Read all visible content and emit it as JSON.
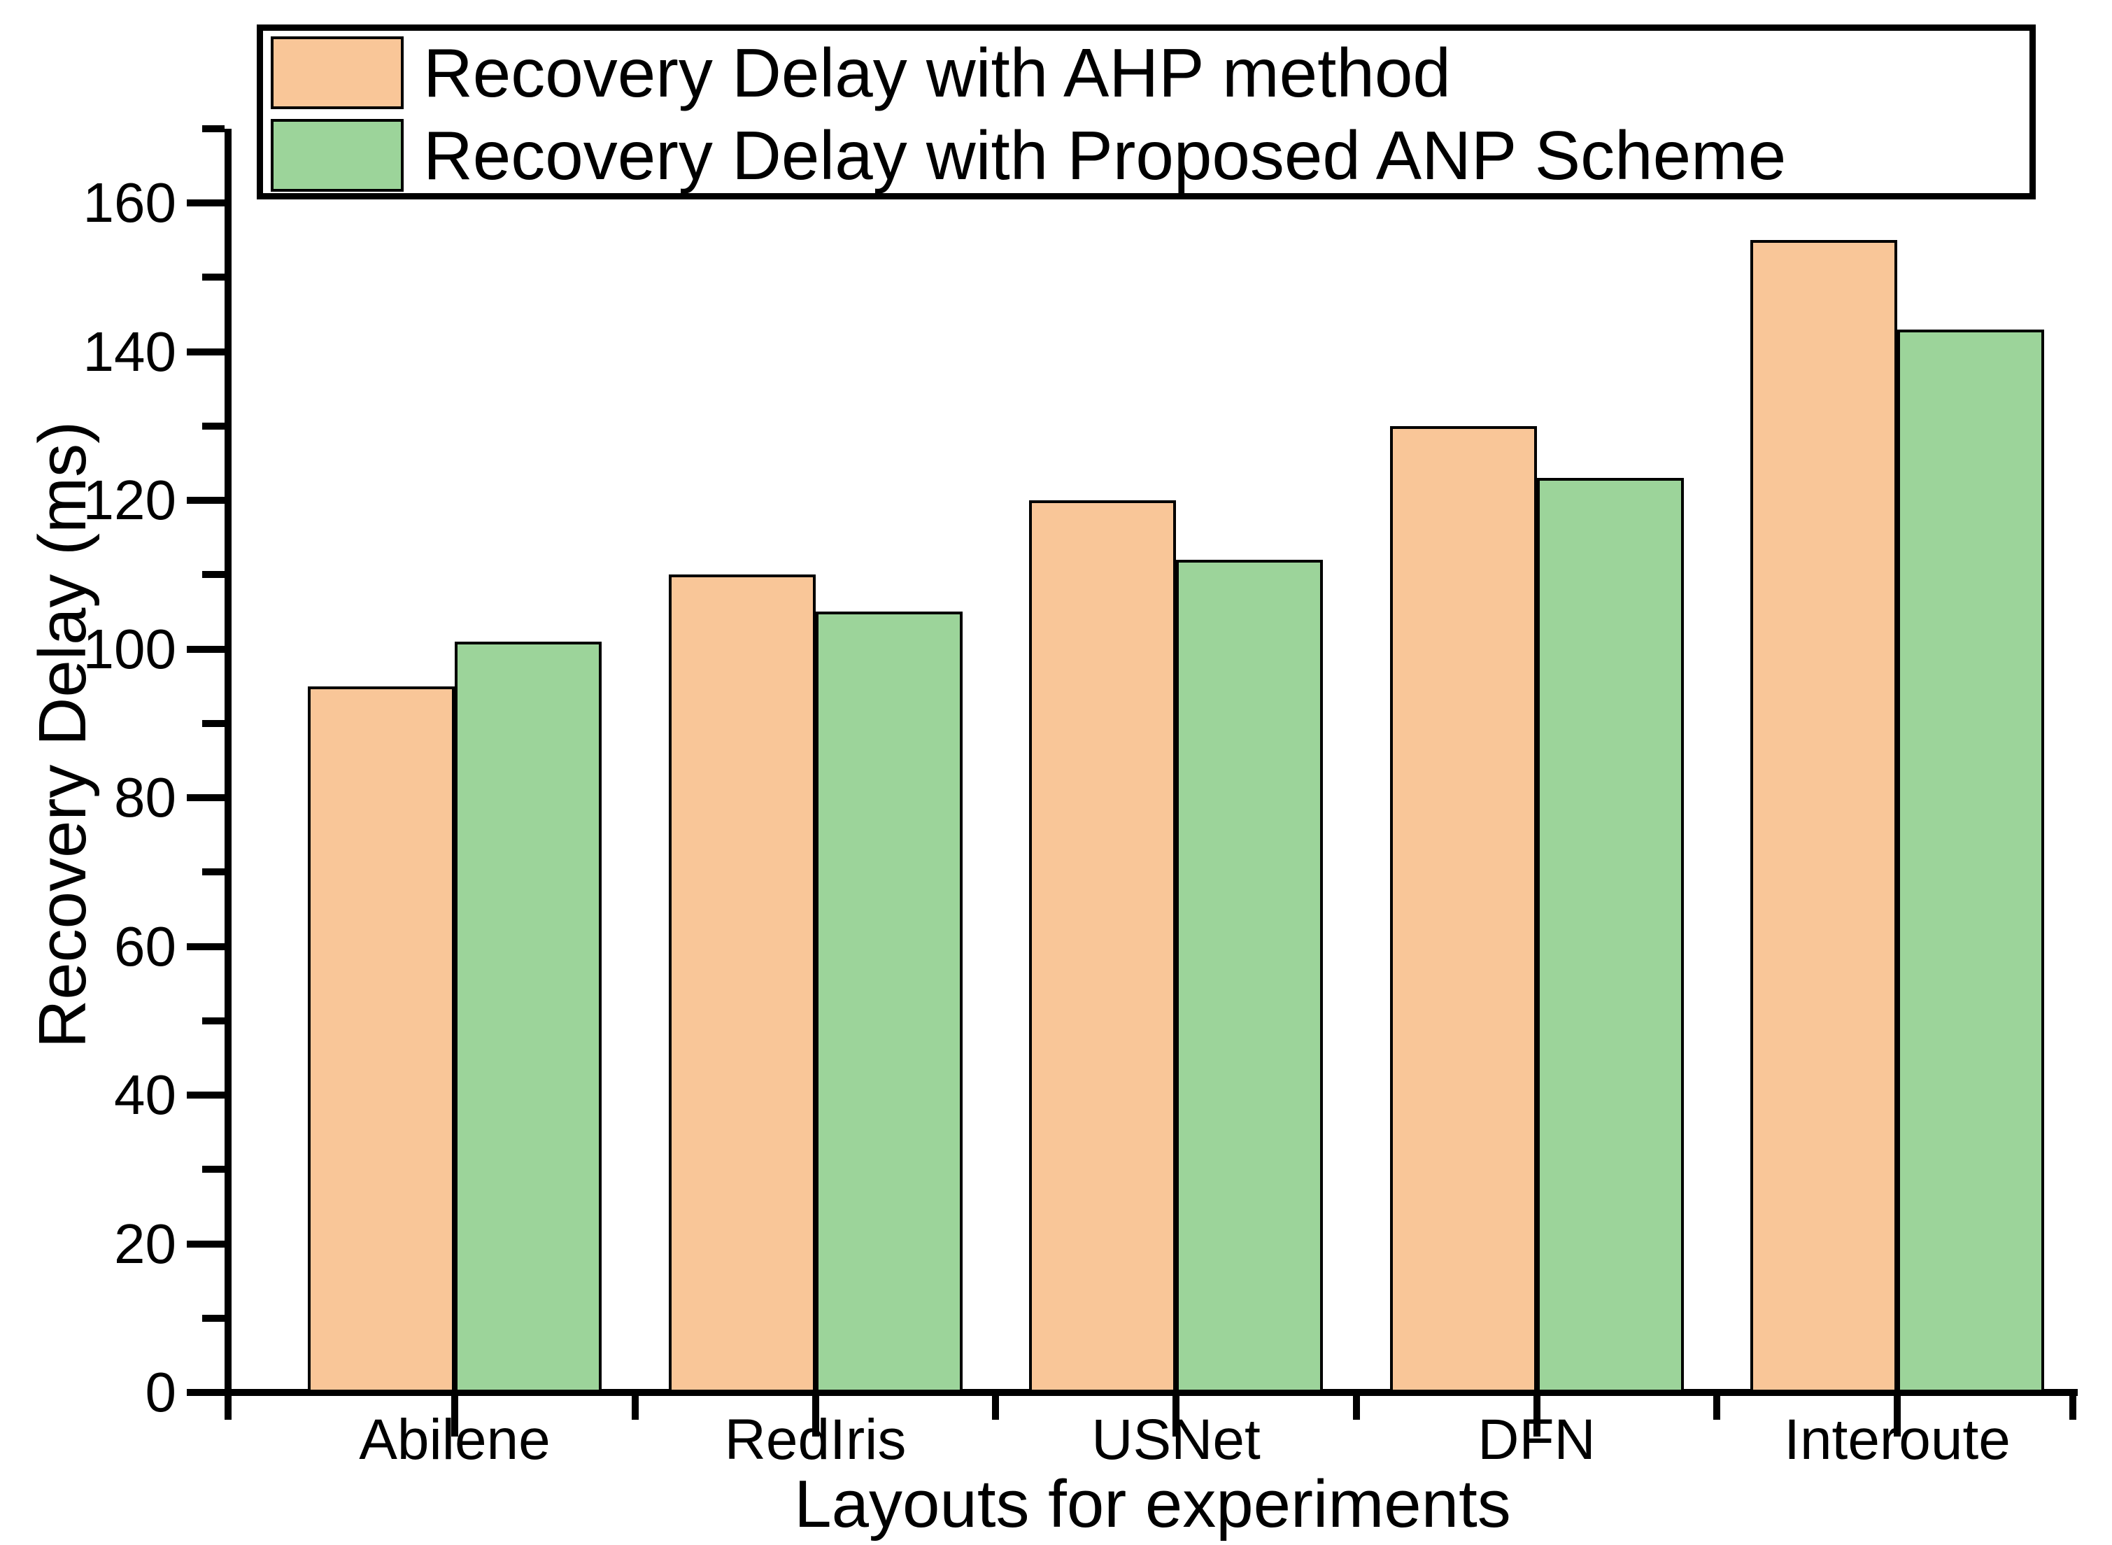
{
  "chart_data": {
    "type": "bar",
    "categories": [
      "Abilene",
      "RedIris",
      "USNet",
      "DFN",
      "Interoute"
    ],
    "series": [
      {
        "name": "Recovery Delay with AHP method",
        "color": "#F9C698",
        "values": [
          95,
          110,
          120,
          130,
          155
        ]
      },
      {
        "name": "Recovery Delay with Proposed ANP Scheme",
        "color": "#9CD49A",
        "values": [
          101,
          105,
          112,
          123,
          143
        ]
      }
    ],
    "title": "",
    "xlabel": "Layouts for experiments",
    "ylabel": "Recovery Delay (ms)",
    "ylim": [
      0,
      170
    ],
    "yticks_major": [
      0,
      20,
      40,
      60,
      80,
      100,
      120,
      140,
      160
    ],
    "ytick_minor_step": 10,
    "grid": false,
    "legend_position": "top",
    "bar_edge_color": "#000000",
    "background_color": "#ffffff"
  }
}
